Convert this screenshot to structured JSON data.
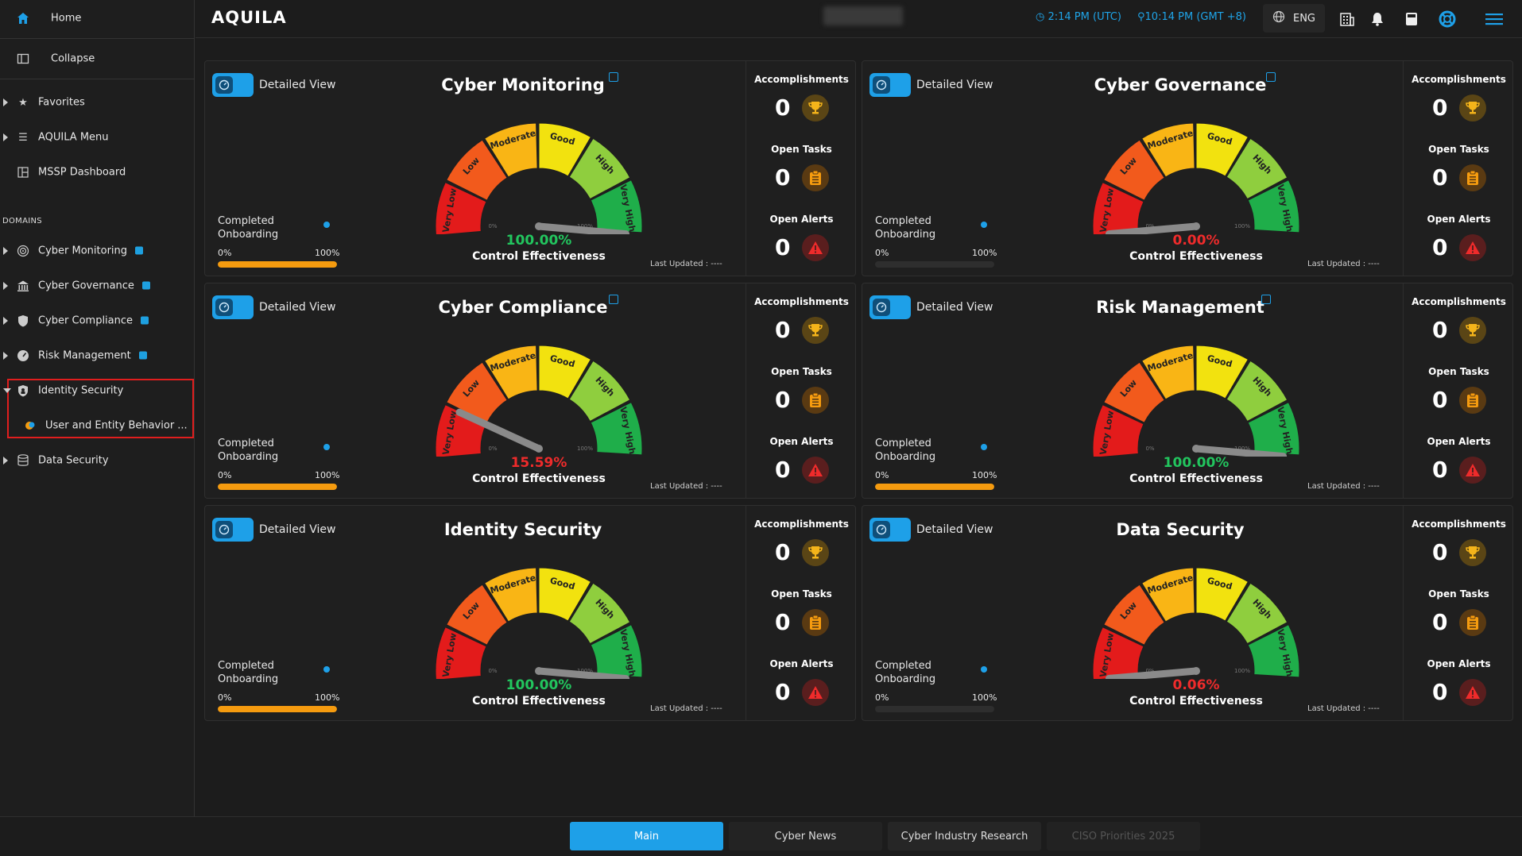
{
  "sidebar": {
    "home": "Home",
    "collapse": "Collapse",
    "favorites": "Favorites",
    "aquila_menu": "AQUILA Menu",
    "mssp_dashboard": "MSSP Dashboard",
    "domains_title": "DOMAINS",
    "domains": [
      {
        "label": "Cyber Monitoring",
        "icon": "radar-icon"
      },
      {
        "label": "Cyber Governance",
        "icon": "bank-icon"
      },
      {
        "label": "Cyber Compliance",
        "icon": "shield-icon"
      },
      {
        "label": "Risk Management",
        "icon": "gauge-icon"
      }
    ],
    "identity_security": "Identity Security",
    "ueba": "User and Entity Behavior ...",
    "data_security": "Data Security"
  },
  "topbar": {
    "logo": "AQUILA",
    "time_utc": "2:14 PM (UTC)",
    "time_local": "10:14 PM (GMT +8)",
    "language": "ENG"
  },
  "colors": {
    "accent": "#1ea0e8",
    "good": "#22c55e",
    "bad": "#ef2b2b",
    "progress": "#f59b0f"
  },
  "gauge_labels": [
    "Very Low",
    "Low",
    "Moderate",
    "Good",
    "High",
    "Very High"
  ],
  "gauge_min_label": "0%",
  "gauge_max_label": "100%",
  "common": {
    "detailed_view": "Detailed View",
    "completed_onboarding": "Completed Onboarding",
    "pct0": "0%",
    "pct100": "100%",
    "control_effectiveness": "Control Effectiveness",
    "last_updated": "Last Updated : ----",
    "accomplishments": "Accomplishments",
    "open_tasks": "Open Tasks",
    "open_alerts": "Open Alerts"
  },
  "panels": [
    {
      "title": "Cyber Monitoring",
      "external": true,
      "effectiveness": "100.00%",
      "value": 100,
      "onboarding": 100,
      "accomplishments": "0",
      "open_tasks": "0",
      "open_alerts": "0"
    },
    {
      "title": "Cyber Governance",
      "external": true,
      "effectiveness": "0.00%",
      "value": 0,
      "onboarding": 0,
      "accomplishments": "0",
      "open_tasks": "0",
      "open_alerts": "0"
    },
    {
      "title": "Cyber Compliance",
      "external": true,
      "effectiveness": "15.59%",
      "value": 15.59,
      "onboarding": 100,
      "accomplishments": "0",
      "open_tasks": "0",
      "open_alerts": "0"
    },
    {
      "title": "Risk Management",
      "external": true,
      "effectiveness": "100.00%",
      "value": 100,
      "onboarding": 100,
      "accomplishments": "0",
      "open_tasks": "0",
      "open_alerts": "0"
    },
    {
      "title": "Identity Security",
      "external": false,
      "effectiveness": "100.00%",
      "value": 100,
      "onboarding": 100,
      "accomplishments": "0",
      "open_tasks": "0",
      "open_alerts": "0"
    },
    {
      "title": "Data Security",
      "external": false,
      "effectiveness": "0.06%",
      "value": 0.06,
      "onboarding": 0,
      "accomplishments": "0",
      "open_tasks": "0",
      "open_alerts": "0"
    }
  ],
  "bottom_tabs": [
    "Main",
    "Cyber News",
    "Cyber Industry Research",
    "CISO Priorities 2025"
  ]
}
